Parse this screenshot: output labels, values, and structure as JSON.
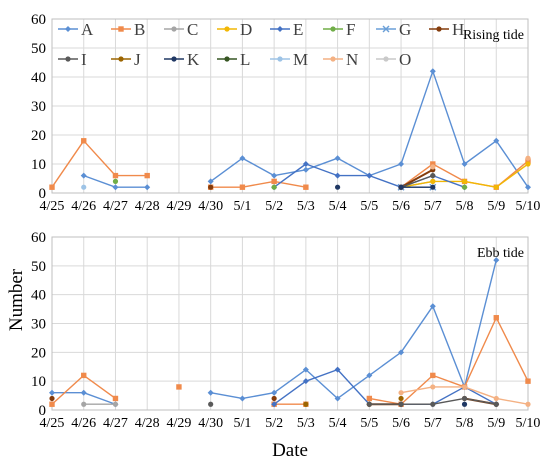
{
  "figure": {
    "ylabel": "Number",
    "xlabel": "Date"
  },
  "chart_data": [
    {
      "type": "line",
      "title": "Rising tide",
      "ylim": [
        0,
        60
      ],
      "yticks": [
        0,
        10,
        20,
        30,
        40,
        50,
        60
      ],
      "categories": [
        "4/25",
        "4/26",
        "4/27",
        "4/28",
        "4/29",
        "4/30",
        "5/1",
        "5/2",
        "5/3",
        "5/4",
        "5/5",
        "5/6",
        "5/7",
        "5/8",
        "5/9",
        "5/10"
      ],
      "grid": true,
      "legend": "top, 2 rows",
      "series": [
        {
          "name": "A",
          "color": "#5b8fd4",
          "marker": "diamond",
          "values": [
            null,
            6,
            2,
            2,
            null,
            4,
            12,
            6,
            8,
            12,
            6,
            10,
            42,
            10,
            18,
            2
          ]
        },
        {
          "name": "B",
          "color": "#f08a4b",
          "marker": "square",
          "values": [
            2,
            18,
            6,
            6,
            null,
            2,
            2,
            4,
            2,
            null,
            null,
            2,
            10,
            4,
            2,
            11
          ]
        },
        {
          "name": "C",
          "color": "#a5a5a5",
          "marker": "circle",
          "values": [
            null,
            null,
            null,
            null,
            null,
            null,
            null,
            null,
            null,
            null,
            null,
            2,
            4,
            null,
            null,
            null
          ]
        },
        {
          "name": "D",
          "color": "#f2b705",
          "marker": "circle",
          "values": [
            null,
            null,
            null,
            null,
            null,
            null,
            null,
            null,
            null,
            null,
            null,
            2,
            4,
            4,
            2,
            10
          ]
        },
        {
          "name": "E",
          "color": "#4472c4",
          "marker": "diamond",
          "values": [
            null,
            null,
            null,
            null,
            null,
            null,
            null,
            2,
            10,
            6,
            6,
            2,
            6,
            2,
            null,
            null
          ]
        },
        {
          "name": "F",
          "color": "#70ad47",
          "marker": "circle",
          "values": [
            null,
            null,
            4,
            null,
            null,
            null,
            null,
            2,
            null,
            null,
            null,
            null,
            null,
            2,
            null,
            null
          ]
        },
        {
          "name": "G",
          "color": "#6a9fd8",
          "marker": "x",
          "values": [
            null,
            null,
            null,
            null,
            null,
            null,
            null,
            null,
            null,
            null,
            null,
            2,
            2,
            null,
            null,
            null
          ]
        },
        {
          "name": "H",
          "color": "#843c0c",
          "marker": "circle",
          "values": [
            null,
            null,
            null,
            null,
            null,
            2,
            null,
            null,
            null,
            null,
            null,
            2,
            8,
            null,
            null,
            null
          ]
        },
        {
          "name": "I",
          "color": "#595959",
          "marker": "circle",
          "values": [
            null,
            null,
            null,
            null,
            null,
            null,
            null,
            null,
            null,
            null,
            null,
            2,
            6,
            null,
            null,
            null
          ]
        },
        {
          "name": "J",
          "color": "#9c6500",
          "marker": "circle",
          "values": [
            null,
            null,
            null,
            null,
            null,
            null,
            null,
            null,
            null,
            null,
            null,
            null,
            null,
            null,
            null,
            null
          ]
        },
        {
          "name": "K",
          "color": "#203864",
          "marker": "circle",
          "values": [
            null,
            null,
            null,
            null,
            null,
            null,
            null,
            null,
            null,
            2,
            null,
            2,
            2,
            null,
            null,
            null
          ]
        },
        {
          "name": "L",
          "color": "#375623",
          "marker": "circle",
          "values": [
            null,
            null,
            null,
            null,
            null,
            null,
            null,
            null,
            null,
            null,
            null,
            null,
            null,
            null,
            null,
            null
          ]
        },
        {
          "name": "M",
          "color": "#9dc3e6",
          "marker": "circle",
          "values": [
            null,
            2,
            null,
            null,
            null,
            null,
            null,
            null,
            null,
            null,
            null,
            null,
            null,
            null,
            null,
            null
          ]
        },
        {
          "name": "N",
          "color": "#f4b183",
          "marker": "circle",
          "values": [
            null,
            null,
            null,
            null,
            null,
            null,
            null,
            null,
            null,
            null,
            null,
            null,
            9,
            null,
            null,
            12
          ]
        },
        {
          "name": "O",
          "color": "#c9c9c9",
          "marker": "circle",
          "values": [
            null,
            null,
            null,
            null,
            null,
            null,
            null,
            null,
            null,
            null,
            null,
            null,
            null,
            null,
            null,
            null
          ]
        }
      ]
    },
    {
      "type": "line",
      "title": "Ebb tide",
      "ylim": [
        0,
        60
      ],
      "yticks": [
        0,
        10,
        20,
        30,
        40,
        50,
        60
      ],
      "categories": [
        "4/25",
        "4/26",
        "4/27",
        "4/28",
        "4/29",
        "4/30",
        "5/1",
        "5/2",
        "5/3",
        "5/4",
        "5/5",
        "5/6",
        "5/7",
        "5/8",
        "5/9",
        "5/10"
      ],
      "grid": true,
      "series": [
        {
          "name": "A",
          "color": "#5b8fd4",
          "marker": "diamond",
          "values": [
            6,
            6,
            2,
            null,
            null,
            6,
            4,
            6,
            14,
            4,
            12,
            20,
            36,
            8,
            52,
            null
          ]
        },
        {
          "name": "B",
          "color": "#f08a4b",
          "marker": "square",
          "values": [
            2,
            12,
            4,
            null,
            8,
            null,
            null,
            2,
            2,
            null,
            4,
            2,
            12,
            8,
            32,
            10
          ]
        },
        {
          "name": "C",
          "color": "#a5a5a5",
          "marker": "circle",
          "values": [
            null,
            2,
            2,
            null,
            null,
            null,
            null,
            null,
            null,
            null,
            null,
            null,
            null,
            null,
            null,
            null
          ]
        },
        {
          "name": "D",
          "color": "#f2b705",
          "marker": "circle",
          "values": [
            null,
            null,
            null,
            null,
            null,
            null,
            null,
            null,
            null,
            null,
            2,
            null,
            null,
            null,
            null,
            null
          ]
        },
        {
          "name": "E",
          "color": "#4472c4",
          "marker": "diamond",
          "values": [
            null,
            null,
            null,
            null,
            null,
            null,
            null,
            2,
            10,
            14,
            2,
            2,
            2,
            8,
            2,
            null
          ]
        },
        {
          "name": "F",
          "color": "#70ad47",
          "marker": "circle",
          "values": [
            null,
            null,
            null,
            null,
            null,
            null,
            null,
            null,
            null,
            null,
            null,
            null,
            null,
            null,
            null,
            null
          ]
        },
        {
          "name": "G",
          "color": "#6a9fd8",
          "marker": "x",
          "values": [
            null,
            null,
            null,
            null,
            null,
            null,
            null,
            null,
            null,
            null,
            null,
            null,
            null,
            null,
            null,
            null
          ]
        },
        {
          "name": "H",
          "color": "#843c0c",
          "marker": "circle",
          "values": [
            4,
            null,
            null,
            null,
            null,
            null,
            null,
            4,
            null,
            null,
            2,
            2,
            null,
            4,
            2,
            null
          ]
        },
        {
          "name": "I",
          "color": "#595959",
          "marker": "circle",
          "values": [
            null,
            null,
            null,
            null,
            null,
            2,
            null,
            null,
            null,
            null,
            2,
            2,
            2,
            4,
            2,
            null
          ]
        },
        {
          "name": "J",
          "color": "#9c6500",
          "marker": "circle",
          "values": [
            null,
            null,
            null,
            null,
            null,
            null,
            null,
            null,
            2,
            null,
            null,
            4,
            null,
            null,
            null,
            null
          ]
        },
        {
          "name": "K",
          "color": "#203864",
          "marker": "circle",
          "values": [
            null,
            null,
            null,
            null,
            null,
            null,
            null,
            null,
            null,
            null,
            null,
            null,
            null,
            2,
            null,
            null
          ]
        },
        {
          "name": "L",
          "color": "#375623",
          "marker": "circle",
          "values": [
            null,
            null,
            null,
            null,
            null,
            null,
            null,
            null,
            null,
            null,
            null,
            null,
            null,
            null,
            null,
            null
          ]
        },
        {
          "name": "M",
          "color": "#9dc3e6",
          "marker": "circle",
          "values": [
            null,
            null,
            null,
            null,
            null,
            null,
            null,
            null,
            null,
            null,
            null,
            null,
            null,
            null,
            null,
            null
          ]
        },
        {
          "name": "N",
          "color": "#f4b183",
          "marker": "circle",
          "values": [
            null,
            null,
            null,
            null,
            null,
            null,
            null,
            null,
            null,
            null,
            null,
            6,
            8,
            8,
            4,
            2
          ]
        },
        {
          "name": "O",
          "color": "#c9c9c9",
          "marker": "circle",
          "values": [
            null,
            null,
            null,
            null,
            null,
            null,
            null,
            null,
            null,
            null,
            null,
            null,
            null,
            null,
            null,
            null
          ]
        }
      ]
    }
  ]
}
